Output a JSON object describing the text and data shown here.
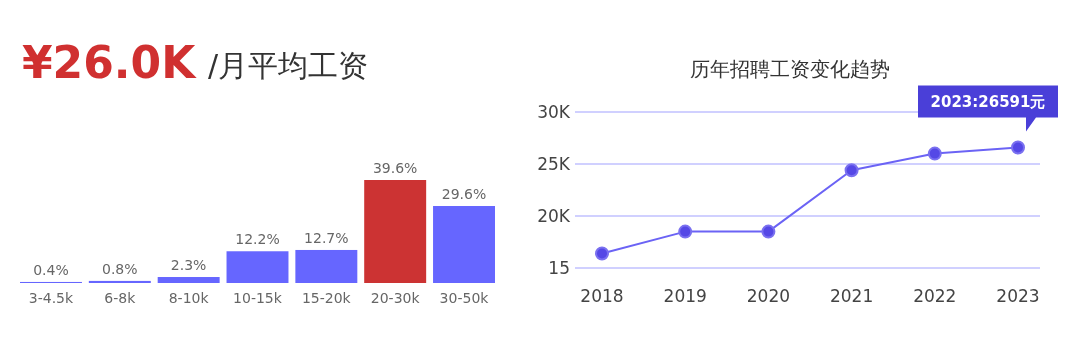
{
  "chart_data": [
    {
      "type": "bar",
      "title": "¥26.0K",
      "subtitle": "/月平均工资",
      "categories": [
        "3-4.5k",
        "6-8k",
        "8-10k",
        "10-15k",
        "15-20k",
        "20-30k",
        "30-50k"
      ],
      "values": [
        0.4,
        0.8,
        2.3,
        12.2,
        12.7,
        39.6,
        29.6
      ],
      "colors": [
        "#6666ff",
        "#6666ff",
        "#6666ff",
        "#6666ff",
        "#6666ff",
        "#cc3333",
        "#6666ff"
      ],
      "value_labels": [
        "0.4%",
        "0.8%",
        "2.3%",
        "12.2%",
        "12.7%",
        "39.6%",
        "29.6%"
      ],
      "tick_labels": "x"
    },
    {
      "type": "line",
      "title": "历年招聘工资变化趋势",
      "categories": [
        "2018",
        "2019",
        "2020",
        "2021",
        "2022",
        "2023"
      ],
      "series": [
        {
          "color": "#6b63f5",
          "values": [
            16.4,
            18.5,
            18.5,
            24.4,
            26.0,
            26.591
          ]
        }
      ],
      "ylim": [
        15,
        30
      ],
      "yticks": [
        {
          "value": 15,
          "label": "15"
        },
        {
          "value": 20,
          "label": "20K"
        },
        {
          "value": 25,
          "label": "25K"
        },
        {
          "value": 30,
          "label": "30K"
        }
      ],
      "grid": "y",
      "marker": "circle",
      "annotations": [
        {
          "text": "2023:26591元",
          "x": "2023",
          "y": 26.591
        }
      ]
    }
  ]
}
